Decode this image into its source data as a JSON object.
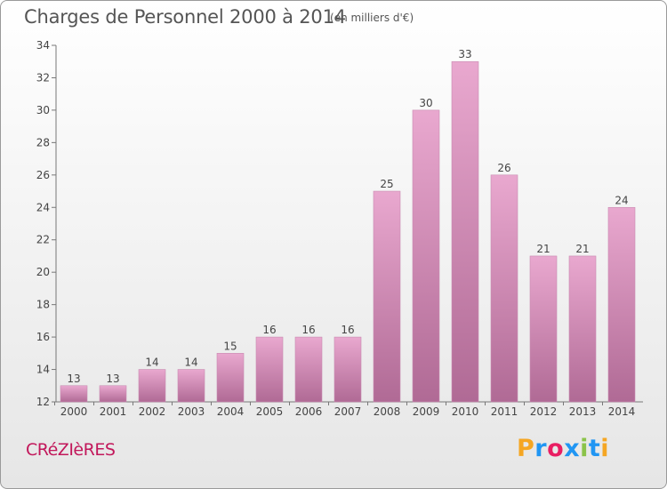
{
  "header": {
    "title": "Charges de Personnel 2000 à 2014",
    "subtitle": "(en milliers d'€)"
  },
  "footer": {
    "commune": "CRéZIèRES",
    "logo": {
      "letters": [
        "P",
        "r",
        "o",
        "x",
        "i",
        "t",
        "i"
      ],
      "colors": [
        "#f5a623",
        "#2196f3",
        "#e91e63",
        "#2196f3",
        "#8bc34a",
        "#2196f3",
        "#f5a623"
      ]
    }
  },
  "colors": {
    "bar_top": "#e9a8cf",
    "bar_bottom": "#b06a95",
    "commune": "#c2185b"
  },
  "chart_data": {
    "type": "bar",
    "categories": [
      "2000",
      "2001",
      "2002",
      "2003",
      "2004",
      "2005",
      "2006",
      "2007",
      "2008",
      "2009",
      "2010",
      "2011",
      "2012",
      "2013",
      "2014"
    ],
    "values": [
      13,
      13,
      14,
      14,
      15,
      16,
      16,
      16,
      25,
      30,
      33,
      26,
      21,
      21,
      24
    ],
    "ylim": [
      12,
      34
    ],
    "yticks": [
      12,
      14,
      16,
      18,
      20,
      22,
      24,
      26,
      28,
      30,
      32,
      34
    ],
    "title": "Charges de Personnel 2000 à 2014",
    "xlabel": "",
    "ylabel": "",
    "grid": false,
    "data_labels": true
  }
}
